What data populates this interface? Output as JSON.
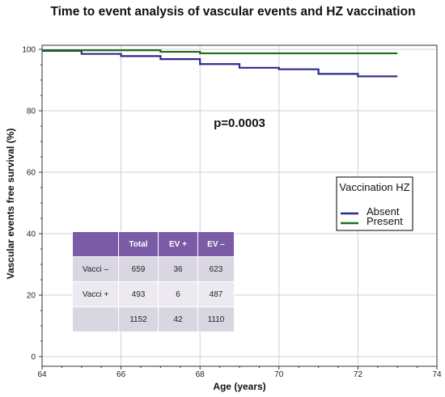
{
  "chart_data": {
    "type": "line",
    "title": "Time to event analysis of vascular events and HZ vaccination",
    "xlabel": "Age (years)",
    "ylabel": "Vascular events free survival (%)",
    "xlim": [
      64,
      74
    ],
    "ylim": [
      0,
      100
    ],
    "x_ticks": [
      64,
      66,
      68,
      70,
      72,
      74
    ],
    "y_ticks": [
      0,
      20,
      40,
      60,
      80,
      100
    ],
    "grid": true,
    "annotation": "p=0.0003",
    "legend": {
      "title": "Vaccination HZ",
      "position": "right",
      "entries": [
        "Absent",
        "Present"
      ]
    },
    "series": [
      {
        "name": "Absent",
        "color": "#2a2a8c",
        "step": true,
        "points": [
          [
            64,
            99.5
          ],
          [
            65,
            98.5
          ],
          [
            66,
            97.8
          ],
          [
            67,
            96.8
          ],
          [
            68,
            95.2
          ],
          [
            69,
            94.0
          ],
          [
            70,
            93.5
          ],
          [
            71,
            92.0
          ],
          [
            72,
            91.2
          ],
          [
            73,
            91.2
          ]
        ]
      },
      {
        "name": "Present",
        "color": "#1e6b1e",
        "step": true,
        "points": [
          [
            64,
            99.7
          ],
          [
            67,
            99.2
          ],
          [
            68,
            98.7
          ],
          [
            73,
            98.7
          ]
        ]
      }
    ]
  },
  "table": {
    "headers": [
      "",
      "Total",
      "EV +",
      "EV –"
    ],
    "rows": [
      [
        "Vacci –",
        "659",
        "36",
        "623"
      ],
      [
        "Vacci +",
        "493",
        "6",
        "487"
      ],
      [
        "",
        "1152",
        "42",
        "1110"
      ]
    ]
  }
}
